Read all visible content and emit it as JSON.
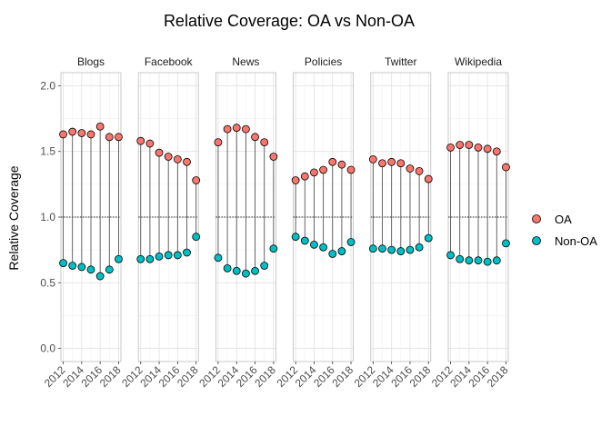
{
  "chart_data": {
    "type": "scatter",
    "title": "Relative Coverage: OA vs Non-OA",
    "xlabel": "",
    "ylabel": "Relative Coverage",
    "ylim": [
      -0.1,
      2.1
    ],
    "yticks": [
      0.0,
      0.5,
      1.0,
      1.5,
      2.0
    ],
    "ytick_labels": [
      "0.0",
      "0.5",
      "1.0",
      "1.5",
      "2.0"
    ],
    "xlim": [
      2011.75,
      2018.25
    ],
    "xticks": [
      2012,
      2014,
      2016,
      2018
    ],
    "xtick_labels": [
      "2012",
      "2014",
      "2016",
      "2018"
    ],
    "x": [
      2012,
      2013,
      2014,
      2015,
      2016,
      2017,
      2018
    ],
    "reference_line": 1.0,
    "grid": true,
    "legend_position": "right",
    "facets": [
      {
        "name": "Blogs",
        "series": [
          {
            "name": "OA",
            "values": [
              1.63,
              1.65,
              1.64,
              1.63,
              1.69,
              1.61,
              1.61
            ]
          },
          {
            "name": "Non-OA",
            "values": [
              0.65,
              0.63,
              0.62,
              0.6,
              0.55,
              0.6,
              0.68
            ]
          }
        ]
      },
      {
        "name": "Facebook",
        "series": [
          {
            "name": "OA",
            "values": [
              1.58,
              1.56,
              1.49,
              1.46,
              1.44,
              1.42,
              1.28
            ]
          },
          {
            "name": "Non-OA",
            "values": [
              0.68,
              0.68,
              0.7,
              0.71,
              0.71,
              0.73,
              0.85
            ]
          }
        ]
      },
      {
        "name": "News",
        "series": [
          {
            "name": "OA",
            "values": [
              1.57,
              1.67,
              1.68,
              1.67,
              1.61,
              1.57,
              1.46
            ]
          },
          {
            "name": "Non-OA",
            "values": [
              0.69,
              0.61,
              0.59,
              0.57,
              0.59,
              0.63,
              0.76
            ]
          }
        ]
      },
      {
        "name": "Policies",
        "series": [
          {
            "name": "OA",
            "values": [
              1.28,
              1.31,
              1.34,
              1.36,
              1.42,
              1.4,
              1.36
            ]
          },
          {
            "name": "Non-OA",
            "values": [
              0.85,
              0.82,
              0.79,
              0.77,
              0.72,
              0.74,
              0.81
            ]
          }
        ]
      },
      {
        "name": "Twitter",
        "series": [
          {
            "name": "OA",
            "values": [
              1.44,
              1.41,
              1.42,
              1.41,
              1.37,
              1.35,
              1.29
            ]
          },
          {
            "name": "Non-OA",
            "values": [
              0.76,
              0.76,
              0.75,
              0.74,
              0.75,
              0.77,
              0.84
            ]
          }
        ]
      },
      {
        "name": "Wikipedia",
        "series": [
          {
            "name": "OA",
            "values": [
              1.53,
              1.55,
              1.55,
              1.53,
              1.52,
              1.5,
              1.38
            ]
          },
          {
            "name": "Non-OA",
            "values": [
              0.71,
              0.68,
              0.67,
              0.67,
              0.66,
              0.67,
              0.8
            ]
          }
        ]
      }
    ],
    "legend": [
      {
        "name": "OA",
        "color": "#F8766D"
      },
      {
        "name": "Non-OA",
        "color": "#00BFC4"
      }
    ]
  }
}
